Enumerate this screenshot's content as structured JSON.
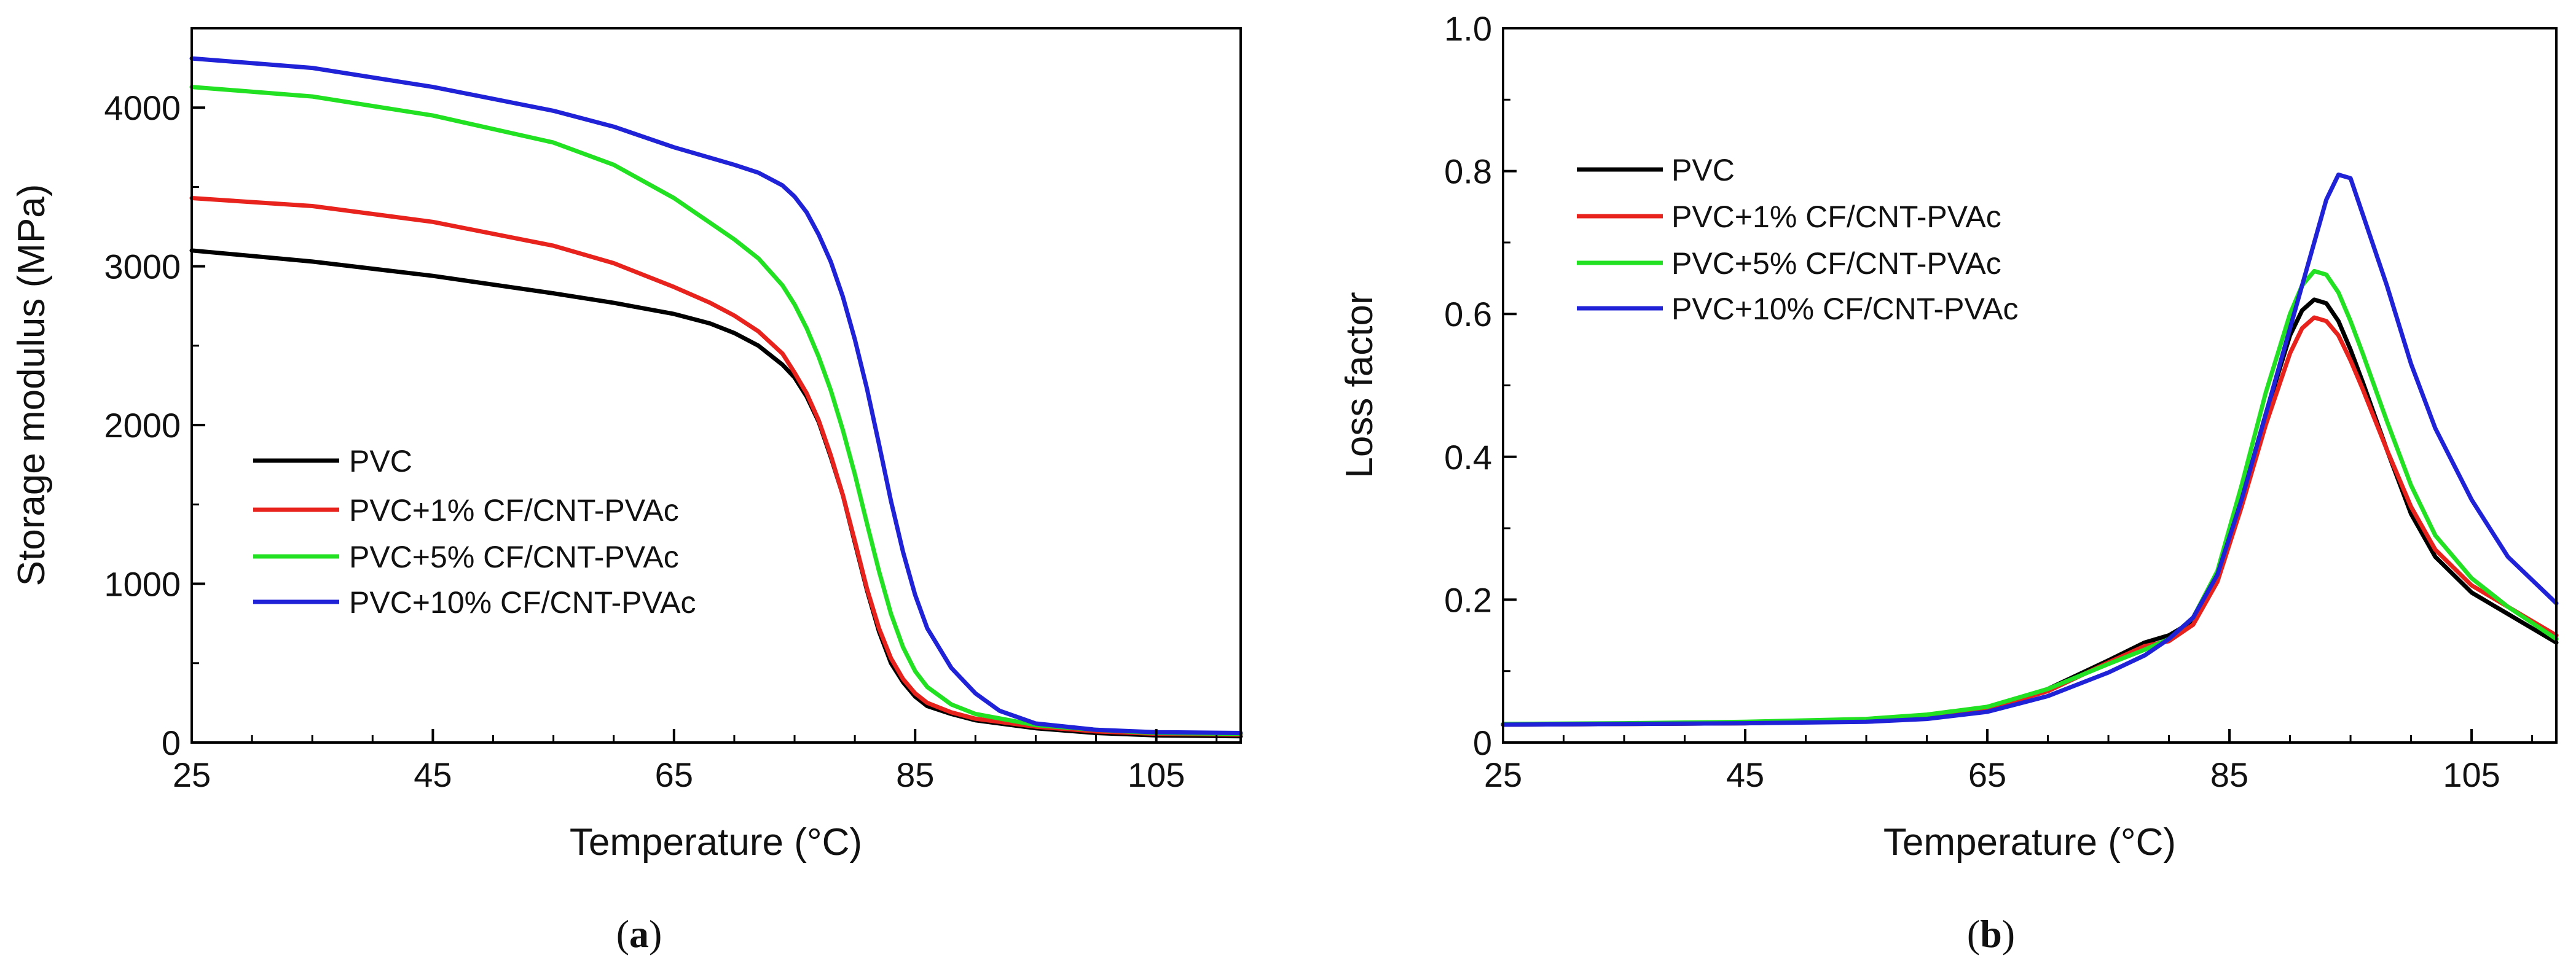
{
  "chart_data": [
    {
      "type": "line",
      "panel_label_open": "(",
      "panel_label_letter": "a",
      "panel_label_close": ")",
      "xlabel": "Temperature (°C)",
      "ylabel": "Storage modulus (MPa)",
      "xlim": [
        25,
        112
      ],
      "ylim": [
        0,
        4500
      ],
      "xticks": [
        25,
        45,
        65,
        85,
        105
      ],
      "yticks": [
        0,
        1000,
        2000,
        3000,
        4000
      ],
      "legend_position": "center-left",
      "series": [
        {
          "name": "PVC",
          "color": "#000000",
          "x": [
            25,
            35,
            45,
            55,
            60,
            65,
            68,
            70,
            72,
            74,
            75,
            76,
            77,
            78,
            79,
            80,
            81,
            82,
            83,
            84,
            85,
            86,
            88,
            90,
            95,
            100,
            105,
            112
          ],
          "y": [
            3100,
            3030,
            2940,
            2830,
            2770,
            2700,
            2640,
            2580,
            2500,
            2380,
            2300,
            2180,
            2020,
            1800,
            1560,
            1260,
            960,
            700,
            500,
            380,
            290,
            230,
            180,
            140,
            90,
            60,
            45,
            40
          ]
        },
        {
          "name": "PVC+1% CF/CNT-PVAc",
          "color": "#e8221c",
          "x": [
            25,
            35,
            45,
            55,
            60,
            65,
            68,
            70,
            72,
            74,
            75,
            76,
            77,
            78,
            79,
            80,
            81,
            82,
            83,
            84,
            85,
            86,
            88,
            90,
            95,
            100,
            105,
            112
          ],
          "y": [
            3430,
            3380,
            3280,
            3130,
            3020,
            2870,
            2770,
            2690,
            2590,
            2450,
            2330,
            2200,
            2030,
            1810,
            1560,
            1270,
            970,
            720,
            530,
            400,
            310,
            250,
            190,
            150,
            100,
            70,
            55,
            50
          ]
        },
        {
          "name": "PVC+5% CF/CNT-PVAc",
          "color": "#22e022",
          "x": [
            25,
            35,
            45,
            55,
            60,
            65,
            70,
            72,
            74,
            75,
            76,
            77,
            78,
            79,
            80,
            81,
            82,
            83,
            84,
            85,
            86,
            88,
            90,
            95,
            100,
            105,
            112
          ],
          "y": [
            4130,
            4070,
            3950,
            3780,
            3640,
            3430,
            3170,
            3050,
            2880,
            2760,
            2610,
            2430,
            2220,
            1970,
            1690,
            1380,
            1080,
            810,
            600,
            450,
            350,
            240,
            180,
            110,
            80,
            60,
            55
          ]
        },
        {
          "name": "PVC+10% CF/CNT-PVAc",
          "color": "#1f22d6",
          "x": [
            25,
            35,
            45,
            55,
            60,
            65,
            70,
            72,
            74,
            75,
            76,
            77,
            78,
            79,
            80,
            81,
            82,
            83,
            84,
            85,
            86,
            88,
            90,
            92,
            95,
            100,
            105,
            112
          ],
          "y": [
            4310,
            4250,
            4130,
            3980,
            3880,
            3750,
            3640,
            3590,
            3510,
            3440,
            3340,
            3200,
            3030,
            2810,
            2540,
            2230,
            1880,
            1520,
            1200,
            930,
            720,
            470,
            310,
            200,
            120,
            80,
            65,
            60
          ]
        }
      ]
    },
    {
      "type": "line",
      "panel_label_open": "(",
      "panel_label_letter": "b",
      "panel_label_close": ")",
      "xlabel": "Temperature (°C)",
      "ylabel": "Loss factor",
      "xlim": [
        25,
        112
      ],
      "ylim": [
        0,
        1.0
      ],
      "xticks": [
        25,
        45,
        65,
        85,
        105
      ],
      "yticks": [
        0,
        0.2,
        0.4,
        0.6,
        0.8,
        1.0
      ],
      "ytick_labels": [
        "0",
        "0.2",
        "0.4",
        "0.6",
        "0.8",
        "1.0"
      ],
      "legend_position": "top-left",
      "series": [
        {
          "name": "PVC",
          "color": "#000000",
          "x": [
            25,
            35,
            45,
            55,
            60,
            65,
            70,
            75,
            78,
            80,
            82,
            84,
            86,
            88,
            90,
            91,
            92,
            93,
            94,
            95,
            96,
            98,
            100,
            102,
            105,
            108,
            112
          ],
          "y": [
            0.025,
            0.026,
            0.027,
            0.03,
            0.035,
            0.048,
            0.075,
            0.115,
            0.14,
            0.15,
            0.17,
            0.23,
            0.34,
            0.46,
            0.57,
            0.605,
            0.62,
            0.615,
            0.59,
            0.55,
            0.505,
            0.41,
            0.32,
            0.26,
            0.21,
            0.18,
            0.14
          ]
        },
        {
          "name": "PVC+1% CF/CNT-PVAc",
          "color": "#e8221c",
          "x": [
            25,
            35,
            45,
            55,
            60,
            65,
            70,
            75,
            78,
            80,
            82,
            84,
            86,
            88,
            90,
            91,
            92,
            93,
            94,
            95,
            96,
            98,
            100,
            102,
            105,
            108,
            112
          ],
          "y": [
            0.025,
            0.026,
            0.027,
            0.03,
            0.035,
            0.047,
            0.072,
            0.112,
            0.135,
            0.142,
            0.165,
            0.225,
            0.33,
            0.445,
            0.545,
            0.58,
            0.595,
            0.59,
            0.57,
            0.535,
            0.495,
            0.41,
            0.33,
            0.27,
            0.22,
            0.19,
            0.15
          ]
        },
        {
          "name": "PVC+5% CF/CNT-PVAc",
          "color": "#22e022",
          "x": [
            25,
            35,
            45,
            55,
            60,
            65,
            70,
            75,
            78,
            80,
            82,
            84,
            86,
            88,
            90,
            91,
            92,
            93,
            94,
            95,
            96,
            98,
            100,
            102,
            105,
            108,
            112
          ],
          "y": [
            0.026,
            0.027,
            0.029,
            0.033,
            0.039,
            0.05,
            0.075,
            0.11,
            0.13,
            0.145,
            0.175,
            0.24,
            0.36,
            0.49,
            0.6,
            0.64,
            0.66,
            0.655,
            0.63,
            0.59,
            0.545,
            0.45,
            0.36,
            0.29,
            0.23,
            0.19,
            0.145
          ]
        },
        {
          "name": "PVC+10% CF/CNT-PVAc",
          "color": "#1f22d6",
          "x": [
            25,
            35,
            45,
            55,
            60,
            65,
            70,
            75,
            78,
            80,
            82,
            84,
            86,
            88,
            90,
            91,
            92,
            93,
            94,
            95,
            96,
            98,
            100,
            102,
            105,
            108,
            112
          ],
          "y": [
            0.025,
            0.026,
            0.027,
            0.029,
            0.033,
            0.043,
            0.065,
            0.098,
            0.122,
            0.145,
            0.175,
            0.235,
            0.34,
            0.46,
            0.58,
            0.64,
            0.7,
            0.76,
            0.795,
            0.79,
            0.74,
            0.64,
            0.53,
            0.44,
            0.34,
            0.26,
            0.195
          ]
        }
      ]
    }
  ]
}
